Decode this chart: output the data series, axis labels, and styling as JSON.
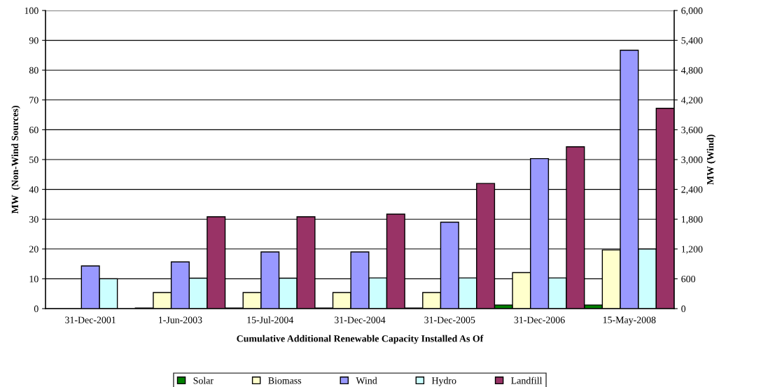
{
  "chart_data": {
    "type": "bar",
    "xlabel": "Cumulative Additional Renewable Capacity Installed As Of",
    "ylabel": "MW  (Non-Wind Sources)",
    "y2label": "MW (Wind)",
    "categories": [
      "31-Dec-2001",
      "1-Jun-2003",
      "15-Jul-2004",
      "31-Dec-2004",
      "31-Dec-2005",
      "31-Dec-2006",
      "15-May-2008"
    ],
    "series": [
      {
        "name": "Solar",
        "color": "#008000",
        "values": [
          null,
          0.2,
          0.2,
          0.2,
          0.2,
          1.2,
          1.2
        ]
      },
      {
        "name": "Biomass",
        "color": "#ffffcc",
        "values": [
          null,
          5.4,
          5.4,
          5.4,
          5.4,
          12.1,
          19.7
        ]
      },
      {
        "name": "Wind",
        "color": "#9999ff",
        "axis": "y2",
        "values": [
          860,
          940,
          1140,
          1140,
          1740,
          3020,
          5200
        ]
      },
      {
        "name": "Hydro",
        "color": "#ccffff",
        "values": [
          10,
          10.2,
          10.2,
          10.3,
          10.3,
          10.3,
          20
        ]
      },
      {
        "name": "Landfill",
        "color": "#993366",
        "values": [
          null,
          30.8,
          30.8,
          31.7,
          42,
          54.3,
          67.2
        ]
      }
    ],
    "ylim": [
      0,
      100
    ],
    "yticks": [
      0,
      10,
      20,
      30,
      40,
      50,
      60,
      70,
      80,
      90,
      100
    ],
    "y2lim": [
      0,
      6000
    ],
    "y2ticks": [
      {
        "value": 0,
        "label": "0"
      },
      {
        "value": 600,
        "label": "600"
      },
      {
        "value": 1200,
        "label": "1,200"
      },
      {
        "value": 1800,
        "label": "1,800"
      },
      {
        "value": 2400,
        "label": "2,400"
      },
      {
        "value": 3000,
        "label": "3,000"
      },
      {
        "value": 3600,
        "label": "3,600"
      },
      {
        "value": 4200,
        "label": "4,200"
      },
      {
        "value": 4800,
        "label": "4,800"
      },
      {
        "value": 5400,
        "label": "5,400"
      },
      {
        "value": 6000,
        "label": "6,000"
      }
    ],
    "grid": "y",
    "legend": "bottom"
  }
}
